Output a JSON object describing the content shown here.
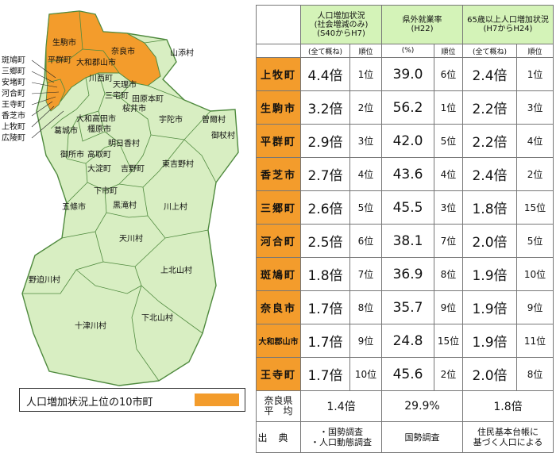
{
  "map": {
    "municipalities": [
      "生駒市",
      "奈良市",
      "平群町",
      "大和郡山市",
      "山添村",
      "川西町",
      "天理市",
      "三宅町",
      "田原本町",
      "桜井市",
      "大和高田市",
      "宇陀市",
      "曽爾村",
      "御杖村",
      "葛城市",
      "橿原市",
      "明日香村",
      "御所市",
      "高取町",
      "大淀町",
      "吉野町",
      "東吉野村",
      "下市町",
      "五條市",
      "黒滝村",
      "川上村",
      "天川村",
      "上北山村",
      "野迫川村",
      "下北山村",
      "十津川村"
    ],
    "left_labels": [
      "斑鳩町",
      "三郷町",
      "安堵町",
      "河合町",
      "王寺町",
      "香芝市",
      "上牧町",
      "広陵町"
    ],
    "legend_text": "人口増加状況上位の10市町",
    "highlight_color": "#f39c2c",
    "base_color": "#d8eec2",
    "border_color": "#4f8a3e"
  },
  "table": {
    "headers": [
      {
        "title": "人口増加状況\n(社会増減のみ)\n(S40からH7)",
        "sub_value": "(全て概ね)",
        "sub_rank": "順位"
      },
      {
        "title": "県外就業率\n(H22)",
        "sub_value": "(%)",
        "sub_rank": "順位"
      },
      {
        "title": "65歳以上人口増加状況\n(H7からH24)",
        "sub_value": "(全て概ね)",
        "sub_rank": "順位"
      }
    ],
    "rows": [
      {
        "name": "上牧町",
        "pop": "4.4倍",
        "pop_rank": "1位",
        "emp": "39.0",
        "emp_rank": "6位",
        "elder": "2.4倍",
        "elder_rank": "1位"
      },
      {
        "name": "生駒市",
        "pop": "3.2倍",
        "pop_rank": "2位",
        "emp": "56.2",
        "emp_rank": "1位",
        "elder": "2.2倍",
        "elder_rank": "3位"
      },
      {
        "name": "平群町",
        "pop": "2.9倍",
        "pop_rank": "3位",
        "emp": "42.0",
        "emp_rank": "5位",
        "elder": "2.2倍",
        "elder_rank": "4位"
      },
      {
        "name": "香芝市",
        "pop": "2.7倍",
        "pop_rank": "4位",
        "emp": "43.6",
        "emp_rank": "4位",
        "elder": "2.4倍",
        "elder_rank": "2位"
      },
      {
        "name": "三郷町",
        "pop": "2.6倍",
        "pop_rank": "5位",
        "emp": "45.5",
        "emp_rank": "3位",
        "elder": "1.8倍",
        "elder_rank": "15位"
      },
      {
        "name": "河合町",
        "pop": "2.5倍",
        "pop_rank": "6位",
        "emp": "38.1",
        "emp_rank": "7位",
        "elder": "2.0倍",
        "elder_rank": "5位"
      },
      {
        "name": "斑鳩町",
        "pop": "1.8倍",
        "pop_rank": "7位",
        "emp": "36.9",
        "emp_rank": "8位",
        "elder": "1.9倍",
        "elder_rank": "10位"
      },
      {
        "name": "奈良市",
        "pop": "1.7倍",
        "pop_rank": "8位",
        "emp": "35.7",
        "emp_rank": "9位",
        "elder": "1.9倍",
        "elder_rank": "9位"
      },
      {
        "name": "大和郡山市",
        "pop": "1.7倍",
        "pop_rank": "9位",
        "emp": "24.8",
        "emp_rank": "15位",
        "elder": "1.9倍",
        "elder_rank": "11位"
      },
      {
        "name": "王寺町",
        "pop": "1.7倍",
        "pop_rank": "10位",
        "emp": "45.6",
        "emp_rank": "2位",
        "elder": "2.0倍",
        "elder_rank": "8位"
      }
    ],
    "average": {
      "label": "奈良県\n平　均",
      "pop": "1.4倍",
      "emp": "29.9%",
      "elder": "1.8倍"
    },
    "source": {
      "label": "出典",
      "pop": "・国勢調査\n・人口動態調査",
      "emp": "国勢調査",
      "elder": "住民基本台帳に\n基づく人口による"
    }
  }
}
